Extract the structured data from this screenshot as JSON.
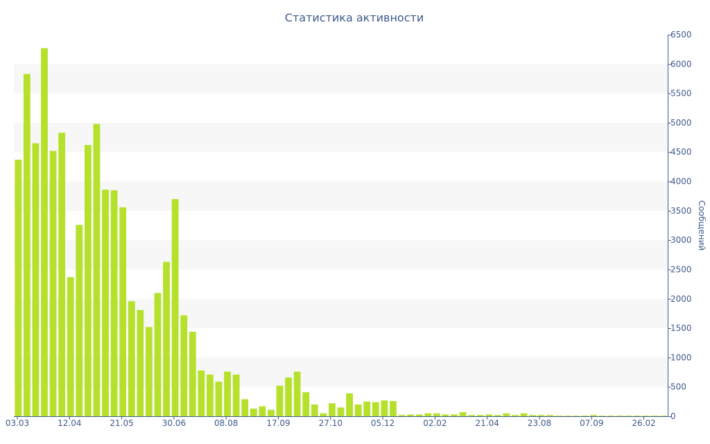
{
  "chart_data": {
    "type": "bar",
    "title": "Статистика активности",
    "xlabel": "",
    "ylabel": "Сообщений",
    "y_axis_side": "right",
    "ylim": [
      0,
      6500
    ],
    "y_ticks": [
      0,
      500,
      1000,
      1500,
      2000,
      2500,
      3000,
      3500,
      4000,
      4500,
      5000,
      5500,
      6000,
      6500
    ],
    "x_tick_labels": [
      "03.03",
      "12.04",
      "21.05",
      "30.06",
      "08.08",
      "17.09",
      "27.10",
      "05.12",
      "02.02",
      "21.04",
      "23.08",
      "07.09",
      "26.02"
    ],
    "grid": "alternating horizontal bands",
    "values": [
      4370,
      5830,
      4650,
      6270,
      4520,
      4830,
      2370,
      3260,
      4620,
      4980,
      3860,
      3850,
      3560,
      1960,
      1810,
      1520,
      2100,
      2630,
      3700,
      1720,
      1440,
      780,
      710,
      590,
      760,
      710,
      290,
      130,
      170,
      110,
      520,
      660,
      760,
      410,
      200,
      50,
      220,
      150,
      390,
      200,
      250,
      240,
      270,
      260,
      20,
      30,
      30,
      50,
      50,
      30,
      30,
      70,
      20,
      20,
      30,
      20,
      50,
      20,
      50,
      20,
      20,
      20,
      10,
      10,
      10,
      10,
      20,
      10,
      10,
      10,
      10,
      10,
      10,
      10,
      10
    ],
    "colors": {
      "bar": "#b5e12c",
      "axis": "#3e5a8a",
      "band": "#f7f7f7"
    }
  }
}
